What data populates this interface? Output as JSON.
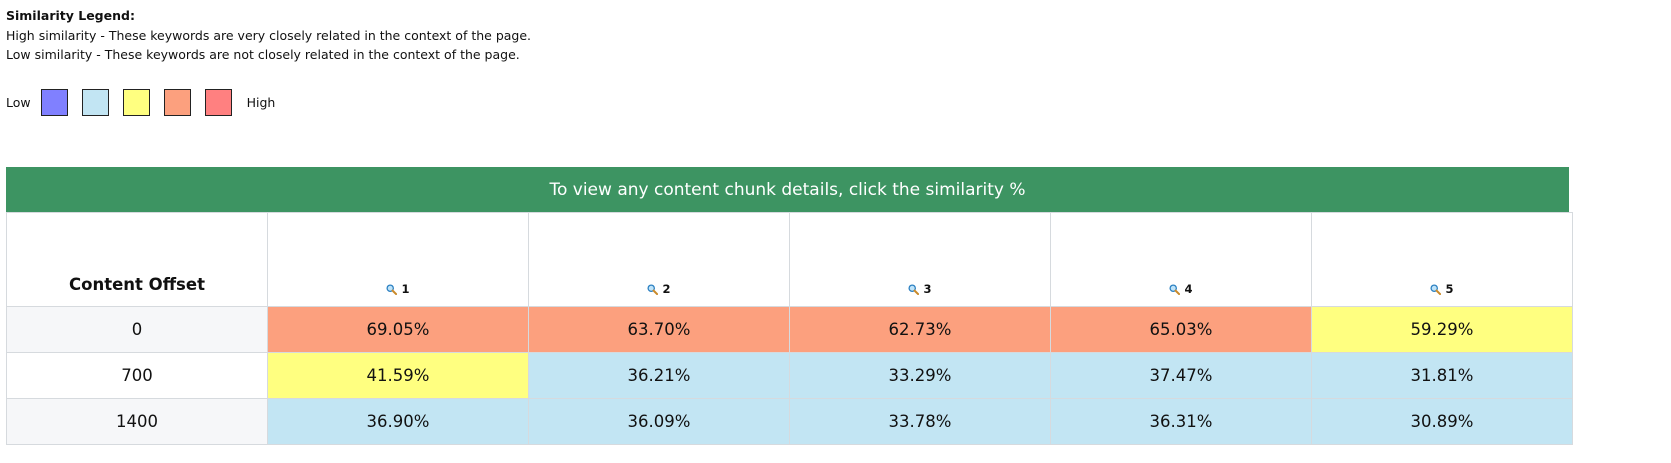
{
  "legend": {
    "title": "Similarity Legend:",
    "high_text": "High similarity - These keywords are very closely related in the context of the page.",
    "low_text": "Low similarity - These keywords are not closely related in the context of the page.",
    "low_label": "Low",
    "high_label": "High",
    "swatches": [
      "#8080ff",
      "#c2e5f3",
      "#ffff80",
      "#fca07e",
      "#ff8080"
    ]
  },
  "table": {
    "banner": "To view any content chunk details, click the similarity %",
    "offset_header": "Content Offset",
    "columns": [
      "1",
      "2",
      "3",
      "4",
      "5"
    ],
    "rows": [
      {
        "offset": "0",
        "cells": [
          {
            "value": "69.05%",
            "color": "#fca07e"
          },
          {
            "value": "63.70%",
            "color": "#fca07e"
          },
          {
            "value": "62.73%",
            "color": "#fca07e"
          },
          {
            "value": "65.03%",
            "color": "#fca07e"
          },
          {
            "value": "59.29%",
            "color": "#ffff80"
          }
        ]
      },
      {
        "offset": "700",
        "cells": [
          {
            "value": "41.59%",
            "color": "#ffff80"
          },
          {
            "value": "36.21%",
            "color": "#c2e5f3"
          },
          {
            "value": "33.29%",
            "color": "#c2e5f3"
          },
          {
            "value": "37.47%",
            "color": "#c2e5f3"
          },
          {
            "value": "31.81%",
            "color": "#c2e5f3"
          }
        ]
      },
      {
        "offset": "1400",
        "cells": [
          {
            "value": "36.90%",
            "color": "#c2e5f3"
          },
          {
            "value": "36.09%",
            "color": "#c2e5f3"
          },
          {
            "value": "33.78%",
            "color": "#c2e5f3"
          },
          {
            "value": "36.31%",
            "color": "#c2e5f3"
          },
          {
            "value": "30.89%",
            "color": "#c2e5f3"
          }
        ]
      }
    ]
  }
}
